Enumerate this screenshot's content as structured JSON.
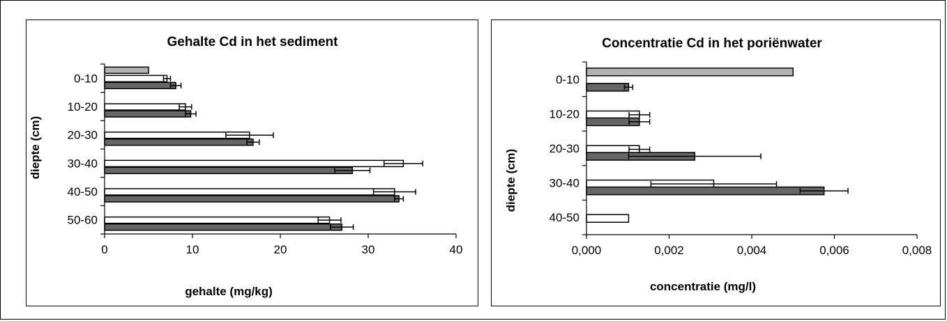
{
  "colors": {
    "light_grey": "#b3b3b3",
    "white": "#ffffff",
    "dark_grey": "#666666",
    "outline": "#000000"
  },
  "chart_data": [
    {
      "type": "bar",
      "orientation": "horizontal",
      "title": "Gehalte Cd in het sediment",
      "xlabel": "gehalte (mg/kg)",
      "ylabel": "diepte (cm)",
      "categories": [
        "0-10",
        "10-20",
        "20-30",
        "30-40",
        "40-50",
        "50-60"
      ],
      "xlim": [
        0,
        40
      ],
      "xticks": [
        "0",
        "10",
        "20",
        "30",
        "40"
      ],
      "grid": false,
      "legend": "none",
      "series": [
        {
          "color": "#b3b3b3",
          "values": [
            5.0,
            null,
            null,
            null,
            null,
            null
          ],
          "errors": [
            null,
            null,
            null,
            null,
            null,
            null
          ]
        },
        {
          "color": "#ffffff",
          "values": [
            7.1,
            9.2,
            16.5,
            34.0,
            33.0,
            25.6
          ],
          "errors": [
            0.4,
            0.7,
            2.7,
            2.2,
            2.4,
            1.3
          ]
        },
        {
          "color": "#666666",
          "values": [
            8.1,
            9.8,
            16.9,
            28.2,
            33.5,
            27.0
          ],
          "errors": [
            0.6,
            0.6,
            0.7,
            2.0,
            0.5,
            1.3
          ]
        }
      ]
    },
    {
      "type": "bar",
      "orientation": "horizontal",
      "title": "Concentratie Cd in het poriënwater",
      "xlabel": "concentratie (mg/l)",
      "ylabel": "diepte (cm)",
      "categories": [
        "0-10",
        "10-20",
        "20-30",
        "30-40",
        "40-50"
      ],
      "xlim": [
        0,
        0.008
      ],
      "xticks": [
        "0,000",
        "0,002",
        "0,004",
        "0,006",
        "0,008"
      ],
      "grid": false,
      "legend": "none",
      "series": [
        {
          "color": "#b3b3b3",
          "values": [
            0.005,
            null,
            null,
            null,
            null
          ],
          "errors": [
            null,
            null,
            null,
            null,
            null
          ]
        },
        {
          "color": "#ffffff",
          "values": [
            null,
            0.00128,
            0.00128,
            0.00308,
            0.00102
          ],
          "errors": [
            null,
            0.00025,
            0.00025,
            0.00152,
            null
          ]
        },
        {
          "color": "#666666",
          "values": [
            0.00102,
            0.00128,
            0.00262,
            0.00575,
            null
          ],
          "errors": [
            0.0001,
            0.00025,
            0.0016,
            0.00058,
            null
          ]
        }
      ]
    }
  ]
}
